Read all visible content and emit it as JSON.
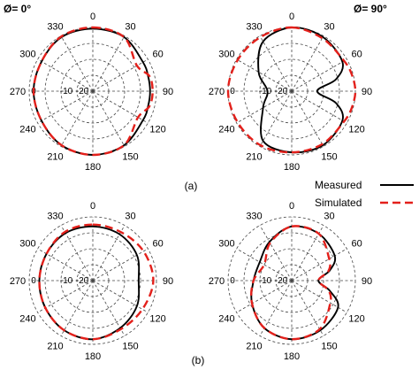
{
  "caption_a": "(a)",
  "caption_b": "(b)",
  "legend": {
    "measured": "Measured",
    "simulated": "Simulated"
  },
  "colors": {
    "measured": "#000000",
    "simulated": "#e3201b",
    "grid": "#444444"
  },
  "chart_data": [
    {
      "type": "polar",
      "title": "Ø= 0°",
      "angle_ticks": [
        "0",
        "30",
        "60",
        "90",
        "120",
        "150",
        "180",
        "210",
        "240",
        "270",
        "300",
        "330"
      ],
      "radial_labels": [
        "-10",
        "-20"
      ],
      "theta_deg": [
        0,
        30,
        60,
        75,
        90,
        105,
        120,
        150,
        180,
        210,
        240,
        270,
        300,
        330
      ],
      "series": [
        {
          "name": "Measured",
          "values": [
            0.98,
            0.98,
            0.91,
            0.9,
            0.9,
            0.9,
            0.91,
            0.98,
            1.0,
            0.98,
            0.93,
            0.93,
            0.93,
            0.98
          ]
        },
        {
          "name": "Simulated",
          "values": [
            1.0,
            0.98,
            0.8,
            0.92,
            0.94,
            0.92,
            0.82,
            0.98,
            1.0,
            0.98,
            0.93,
            0.93,
            0.93,
            0.99
          ]
        }
      ]
    },
    {
      "type": "polar",
      "title": "Ø= 90°",
      "angle_ticks": [
        "0",
        "30",
        "60",
        "90",
        "120",
        "150",
        "180",
        "210",
        "240",
        "270",
        "300",
        "330"
      ],
      "radial_labels": [
        "-10",
        "-20"
      ],
      "theta_deg": [
        0,
        30,
        60,
        75,
        90,
        105,
        120,
        150,
        180,
        210,
        240,
        270,
        300,
        330
      ],
      "series": [
        {
          "name": "Measured",
          "values": [
            1.0,
            0.98,
            0.92,
            0.72,
            0.4,
            0.72,
            0.92,
            0.98,
            0.96,
            0.9,
            0.52,
            0.38,
            0.6,
            0.9
          ]
        },
        {
          "name": "Simulated",
          "values": [
            1.0,
            0.96,
            0.95,
            0.98,
            1.0,
            0.98,
            0.95,
            0.96,
            0.96,
            0.98,
            0.98,
            1.0,
            0.98,
            0.98
          ]
        }
      ]
    },
    {
      "type": "polar",
      "title": "",
      "angle_ticks": [
        "0",
        "30",
        "60",
        "90",
        "120",
        "150",
        "180",
        "210",
        "240",
        "270",
        "300",
        "330"
      ],
      "radial_labels": [
        "-10",
        "-20"
      ],
      "theta_deg": [
        0,
        30,
        60,
        90,
        120,
        150,
        180,
        210,
        240,
        270,
        300,
        330
      ],
      "series": [
        {
          "name": "Measured",
          "values": [
            0.85,
            0.84,
            0.8,
            0.72,
            0.8,
            0.86,
            0.92,
            0.9,
            0.86,
            0.84,
            0.84,
            0.86
          ]
        },
        {
          "name": "Simulated",
          "values": [
            0.88,
            0.88,
            0.92,
            0.95,
            0.9,
            0.88,
            0.92,
            0.9,
            0.86,
            0.84,
            0.84,
            0.88
          ]
        }
      ]
    },
    {
      "type": "polar",
      "title": "",
      "angle_ticks": [
        "0",
        "30",
        "60",
        "90",
        "120",
        "150",
        "180",
        "210",
        "240",
        "270",
        "300",
        "330"
      ],
      "radial_labels": [
        "-10",
        "-20"
      ],
      "theta_deg": [
        0,
        30,
        60,
        75,
        90,
        105,
        120,
        150,
        180,
        210,
        240,
        270,
        300,
        330
      ],
      "series": [
        {
          "name": "Measured",
          "values": [
            0.85,
            0.85,
            0.78,
            0.62,
            0.42,
            0.62,
            0.84,
            0.9,
            0.92,
            0.86,
            0.72,
            0.6,
            0.58,
            0.7
          ]
        },
        {
          "name": "Simulated",
          "values": [
            0.85,
            0.85,
            0.68,
            0.6,
            0.42,
            0.6,
            0.7,
            0.88,
            0.92,
            0.86,
            0.72,
            0.6,
            0.5,
            0.68
          ]
        }
      ]
    }
  ]
}
